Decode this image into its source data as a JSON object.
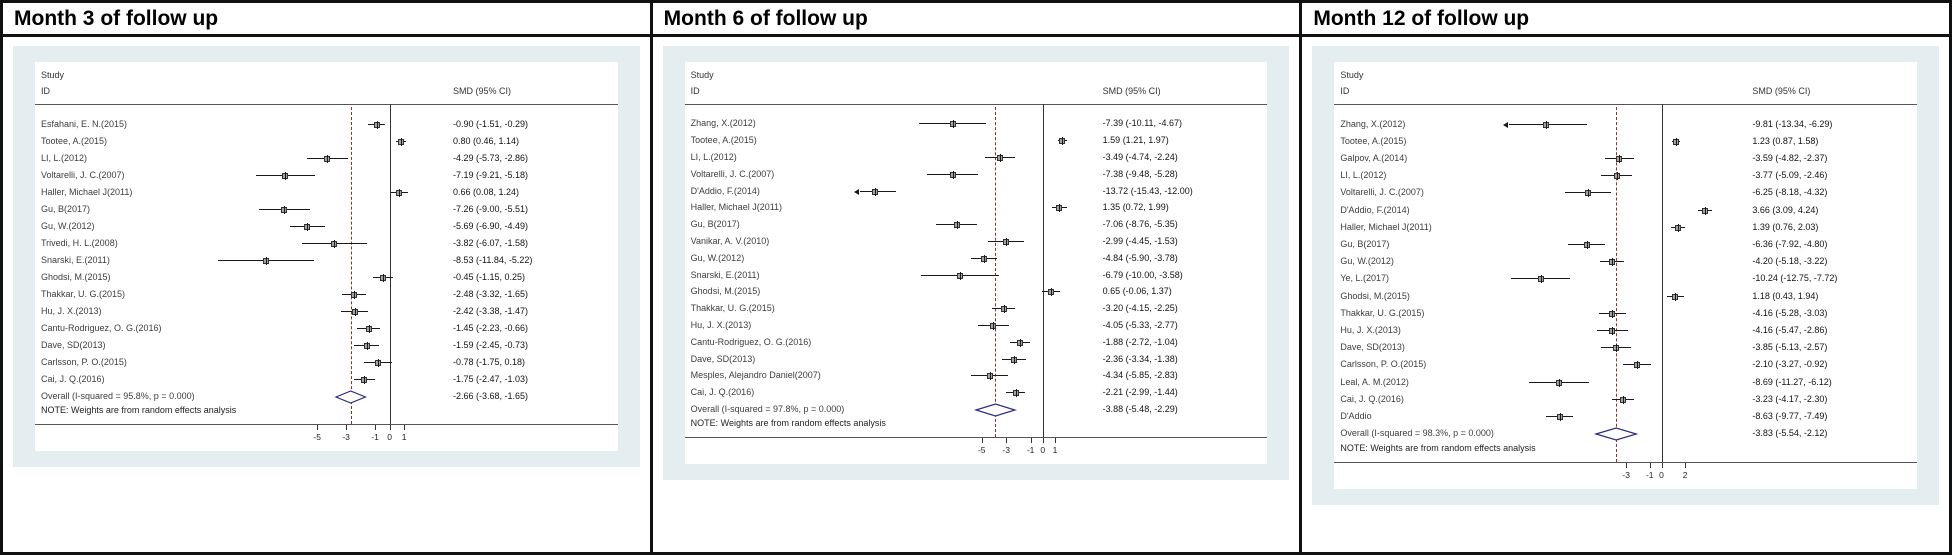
{
  "col_headers": {
    "study": "Study",
    "id": "ID",
    "smd": "SMD (95% CI)"
  },
  "note": "NOTE: Weights are from random effects analysis",
  "chart_data": [
    {
      "type": "forest",
      "title": "Month 3 of follow up",
      "xlabel": "SMD",
      "axis_ticks": [
        -5,
        -3,
        -1,
        0,
        1
      ],
      "xlim": [
        -12.4,
        2.1
      ],
      "studies": [
        {
          "label": "Esfahani, E. N.(2015)",
          "smd": -0.9,
          "lo": -1.51,
          "hi": -0.29,
          "ci_text": "-0.90 (-1.51, -0.29)"
        },
        {
          "label": "Tootee, A.(2015)",
          "smd": 0.8,
          "lo": 0.46,
          "hi": 1.14,
          "ci_text": "0.80 (0.46, 1.14)"
        },
        {
          "label": "LI, L.(2012)",
          "smd": -4.29,
          "lo": -5.73,
          "hi": -2.86,
          "ci_text": "-4.29 (-5.73, -2.86)"
        },
        {
          "label": "Voltarelli, J. C.(2007)",
          "smd": -7.19,
          "lo": -9.21,
          "hi": -5.18,
          "ci_text": "-7.19 (-9.21, -5.18)"
        },
        {
          "label": "Haller, Michael J(2011)",
          "smd": 0.66,
          "lo": 0.08,
          "hi": 1.24,
          "ci_text": "0.66 (0.08, 1.24)"
        },
        {
          "label": "Gu, B(2017)",
          "smd": -7.26,
          "lo": -9.0,
          "hi": -5.51,
          "ci_text": "-7.26 (-9.00, -5.51)"
        },
        {
          "label": "Gu, W.(2012)",
          "smd": -5.69,
          "lo": -6.9,
          "hi": -4.49,
          "ci_text": "-5.69 (-6.90, -4.49)"
        },
        {
          "label": "Trivedi, H. L.(2008)",
          "smd": -3.82,
          "lo": -6.07,
          "hi": -1.58,
          "ci_text": "-3.82 (-6.07, -1.58)"
        },
        {
          "label": "Snarski, E.(2011)",
          "smd": -8.53,
          "lo": -11.84,
          "hi": -5.22,
          "ci_text": "-8.53 (-11.84, -5.22)"
        },
        {
          "label": "Ghodsi, M.(2015)",
          "smd": -0.45,
          "lo": -1.15,
          "hi": 0.25,
          "ci_text": "-0.45 (-1.15, 0.25)"
        },
        {
          "label": "Thakkar, U. G.(2015)",
          "smd": -2.48,
          "lo": -3.32,
          "hi": -1.65,
          "ci_text": "-2.48 (-3.32, -1.65)"
        },
        {
          "label": "Hu, J. X.(2013)",
          "smd": -2.42,
          "lo": -3.38,
          "hi": -1.47,
          "ci_text": "-2.42 (-3.38, -1.47)"
        },
        {
          "label": "Cantu-Rodriguez, O. G.(2016)",
          "smd": -1.45,
          "lo": -2.23,
          "hi": -0.66,
          "ci_text": "-1.45 (-2.23, -0.66)"
        },
        {
          "label": "Dave, SD(2013)",
          "smd": -1.59,
          "lo": -2.45,
          "hi": -0.73,
          "ci_text": "-1.59 (-2.45, -0.73)"
        },
        {
          "label": "Carlsson, P. O.(2015)",
          "smd": -0.78,
          "lo": -1.75,
          "hi": 0.18,
          "ci_text": "-0.78 (-1.75, 0.18)"
        },
        {
          "label": "Cai, J. Q.(2016)",
          "smd": -1.75,
          "lo": -2.47,
          "hi": -1.03,
          "ci_text": "-1.75 (-2.47, -1.03)"
        }
      ],
      "overall": {
        "label": "Overall  (I-squared = 95.8%, p = 0.000)",
        "smd": -2.66,
        "lo": -3.68,
        "hi": -1.65,
        "ci_text": "-2.66 (-3.68, -1.65)"
      }
    },
    {
      "type": "forest",
      "title": "Month 6 of follow up",
      "xlabel": "SMD",
      "axis_ticks": [
        -5,
        -3,
        -1,
        0,
        1
      ],
      "xlim": [
        -15.0,
        2.2
      ],
      "studies": [
        {
          "label": "Zhang, X.(2012)",
          "smd": -7.39,
          "lo": -10.11,
          "hi": -4.67,
          "ci_text": "-7.39 (-10.11, -4.67)"
        },
        {
          "label": "Tootee, A.(2015)",
          "smd": 1.59,
          "lo": 1.21,
          "hi": 1.97,
          "ci_text": "1.59 (1.21, 1.97)"
        },
        {
          "label": "LI, L.(2012)",
          "smd": -3.49,
          "lo": -4.74,
          "hi": -2.24,
          "ci_text": "-3.49 (-4.74, -2.24)"
        },
        {
          "label": "Voltarelli, J. C.(2007)",
          "smd": -7.38,
          "lo": -9.48,
          "hi": -5.28,
          "ci_text": "-7.38 (-9.48, -5.28)"
        },
        {
          "label": "D'Addio, F.(2014)",
          "smd": -13.72,
          "lo": -15.43,
          "hi": -12.0,
          "ci_text": "-13.72 (-15.43, -12.00)",
          "clipped_left": true
        },
        {
          "label": "Haller, Michael J(2011)",
          "smd": 1.35,
          "lo": 0.72,
          "hi": 1.99,
          "ci_text": "1.35 (0.72, 1.99)"
        },
        {
          "label": "Gu, B(2017)",
          "smd": -7.06,
          "lo": -8.76,
          "hi": -5.35,
          "ci_text": "-7.06 (-8.76, -5.35)"
        },
        {
          "label": "Vanikar, A. V.(2010)",
          "smd": -2.99,
          "lo": -4.45,
          "hi": -1.53,
          "ci_text": "-2.99 (-4.45, -1.53)"
        },
        {
          "label": "Gu, W.(2012)",
          "smd": -4.84,
          "lo": -5.9,
          "hi": -3.78,
          "ci_text": "-4.84 (-5.90, -3.78)"
        },
        {
          "label": "Snarski, E.(2011)",
          "smd": -6.79,
          "lo": -10.0,
          "hi": -3.58,
          "ci_text": "-6.79 (-10.00, -3.58)"
        },
        {
          "label": "Ghodsi, M.(2015)",
          "smd": 0.65,
          "lo": -0.06,
          "hi": 1.37,
          "ci_text": "0.65 (-0.06, 1.37)"
        },
        {
          "label": "Thakkar, U. G.(2015)",
          "smd": -3.2,
          "lo": -4.15,
          "hi": -2.25,
          "ci_text": "-3.20 (-4.15, -2.25)"
        },
        {
          "label": "Hu, J. X.(2013)",
          "smd": -4.05,
          "lo": -5.33,
          "hi": -2.77,
          "ci_text": "-4.05 (-5.33, -2.77)"
        },
        {
          "label": "Cantu-Rodriguez, O. G.(2016)",
          "smd": -1.88,
          "lo": -2.72,
          "hi": -1.04,
          "ci_text": "-1.88 (-2.72, -1.04)"
        },
        {
          "label": "Dave, SD(2013)",
          "smd": -2.36,
          "lo": -3.34,
          "hi": -1.38,
          "ci_text": "-2.36 (-3.34, -1.38)"
        },
        {
          "label": "Mesples, Alejandro Daniel(2007)",
          "smd": -4.34,
          "lo": -5.85,
          "hi": -2.83,
          "ci_text": "-4.34 (-5.85, -2.83)"
        },
        {
          "label": "Cai, J. Q.(2016)",
          "smd": -2.21,
          "lo": -2.99,
          "hi": -1.44,
          "ci_text": "-2.21 (-2.99, -1.44)"
        }
      ],
      "overall": {
        "label": "Overall  (I-squared = 97.8%, p = 0.000)",
        "smd": -3.88,
        "lo": -5.48,
        "hi": -2.29,
        "ci_text": "-3.88 (-5.48, -2.29)"
      }
    },
    {
      "type": "forest",
      "title": "Month 12 of follow up",
      "xlabel": "SMD",
      "axis_ticks": [
        -3,
        -1,
        0,
        2
      ],
      "xlim": [
        -12.9,
        4.9
      ],
      "studies": [
        {
          "label": "Zhang, X.(2012)",
          "smd": -9.81,
          "lo": -13.34,
          "hi": -6.29,
          "ci_text": "-9.81 (-13.34, -6.29)",
          "clipped_left": true
        },
        {
          "label": "Tootee, A.(2015)",
          "smd": 1.23,
          "lo": 0.87,
          "hi": 1.58,
          "ci_text": "1.23 (0.87, 1.58)"
        },
        {
          "label": "Galpov, A.(2014)",
          "smd": -3.59,
          "lo": -4.82,
          "hi": -2.37,
          "ci_text": "-3.59 (-4.82, -2.37)"
        },
        {
          "label": "LI, L.(2012)",
          "smd": -3.77,
          "lo": -5.09,
          "hi": -2.46,
          "ci_text": "-3.77 (-5.09, -2.46)"
        },
        {
          "label": "Voltarelli, J. C.(2007)",
          "smd": -6.25,
          "lo": -8.18,
          "hi": -4.32,
          "ci_text": "-6.25 (-8.18, -4.32)"
        },
        {
          "label": "D'Addio, F.(2014)",
          "smd": 3.66,
          "lo": 3.09,
          "hi": 4.24,
          "ci_text": "3.66 (3.09, 4.24)"
        },
        {
          "label": "Haller, Michael J(2011)",
          "smd": 1.39,
          "lo": 0.76,
          "hi": 2.03,
          "ci_text": "1.39 (0.76, 2.03)"
        },
        {
          "label": "Gu, B(2017)",
          "smd": -6.36,
          "lo": -7.92,
          "hi": -4.8,
          "ci_text": "-6.36 (-7.92, -4.80)"
        },
        {
          "label": "Gu, W.(2012)",
          "smd": -4.2,
          "lo": -5.18,
          "hi": -3.22,
          "ci_text": "-4.20 (-5.18, -3.22)"
        },
        {
          "label": "Ye, L.(2017)",
          "smd": -10.24,
          "lo": -12.75,
          "hi": -7.72,
          "ci_text": "-10.24 (-12.75, -7.72)"
        },
        {
          "label": "Ghodsi, M.(2015)",
          "smd": 1.18,
          "lo": 0.43,
          "hi": 1.94,
          "ci_text": "1.18 (0.43, 1.94)"
        },
        {
          "label": "Thakkar, U. G.(2015)",
          "smd": -4.16,
          "lo": -5.28,
          "hi": -3.03,
          "ci_text": "-4.16 (-5.28, -3.03)"
        },
        {
          "label": "Hu, J. X.(2013)",
          "smd": -4.16,
          "lo": -5.47,
          "hi": -2.86,
          "ci_text": "-4.16 (-5.47, -2.86)"
        },
        {
          "label": "Dave, SD(2013)",
          "smd": -3.85,
          "lo": -5.13,
          "hi": -2.57,
          "ci_text": "-3.85 (-5.13, -2.57)"
        },
        {
          "label": "Carlsson, P. O.(2015)",
          "smd": -2.1,
          "lo": -3.27,
          "hi": -0.92,
          "ci_text": "-2.10 (-3.27, -0.92)"
        },
        {
          "label": "Leal, A. M.(2012)",
          "smd": -8.69,
          "lo": -11.27,
          "hi": -6.12,
          "ci_text": "-8.69 (-11.27, -6.12)"
        },
        {
          "label": "Cai, J. Q.(2016)",
          "smd": -3.23,
          "lo": -4.17,
          "hi": -2.3,
          "ci_text": "-3.23 (-4.17, -2.30)"
        },
        {
          "label": "D'Addio",
          "smd": -8.63,
          "lo": -9.77,
          "hi": -7.49,
          "ci_text": "-8.63 (-9.77, -7.49)"
        }
      ],
      "overall": {
        "label": "Overall  (I-squared = 98.3%, p = 0.000)",
        "smd": -3.83,
        "lo": -5.54,
        "hi": -2.12,
        "ci_text": "-3.83 (-5.54, -2.12)"
      }
    }
  ]
}
